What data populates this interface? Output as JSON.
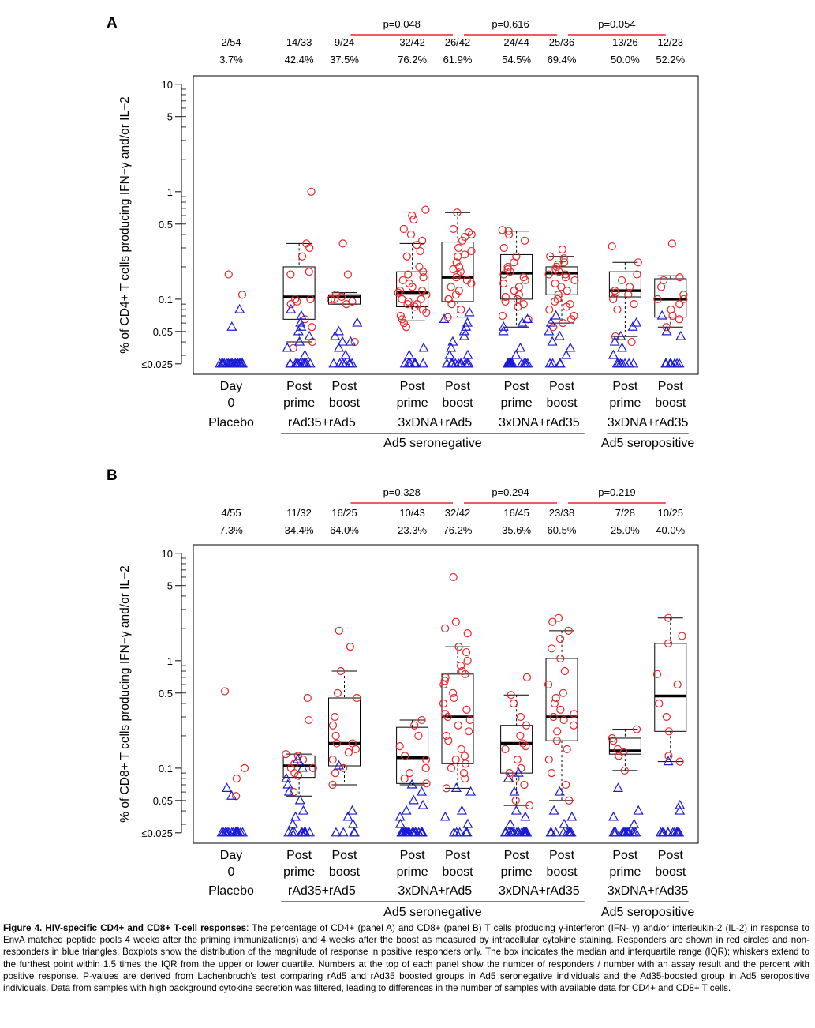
{
  "caption": {
    "bold": "Figure 4. HIV-specific CD4+ and CD8+ T-cell responses",
    "text": ": The percentage of CD4+ (panel A) and CD8+ (panel B) T cells producing γ-interferon (IFN- γ) and/or interleukin-2 (IL-2) in response to EnvA matched peptide pools 4 weeks after the priming immunization(s) and 4 weeks after the boost as measured by intracellular cytokine staining. Responders are shown in red circles and non-responders in blue triangles. Boxplots show the distribution of the magnitude of response in positive responders only. The box indicates the median and interquartile range (IQR); whiskers extend to the furthest point within 1.5 times the IQR from the upper or lower quartile. Numbers at the top of each panel show the number of responders / number with an assay result and the percent with positive response. P-values are derived from Lachenbruch's test comparing rAd5 and rAd35 boosted groups in Ad5 seronegative individuals and the Ad35-boosted group in Ad5 seropositive individuals.  Data from samples with high background cytokine secretion was filtered, leading to differences in the number of samples with available data for CD4+ and CD8+ T cells."
  },
  "colors": {
    "responder": "#e8262a",
    "nonresponder": "#1a1ad6",
    "pvalue_line": "#e8262a"
  },
  "chart_data": [
    {
      "type": "box-strip",
      "panel": "A",
      "ylabel": "% of CD4+ T cells producing IFN−γ and/or IL−2",
      "yscale": "log",
      "ylim": [
        0.02,
        12
      ],
      "yticks": [
        {
          "v": 10,
          "label": "10"
        },
        {
          "v": 5,
          "label": "5"
        },
        {
          "v": 1,
          "label": "1"
        },
        {
          "v": 0.5,
          "label": "0.5"
        },
        {
          "v": 0.1,
          "label": "0.1"
        },
        {
          "v": 0.05,
          "label": "0.05"
        },
        {
          "v": 0.025,
          "label": "≤0.025"
        }
      ],
      "groups": [
        {
          "x": 1,
          "time": "Day 0",
          "resp": "2/54",
          "pct": "3.7%"
        },
        {
          "x": 2.5,
          "time": "Post prime",
          "resp": "14/33",
          "pct": "42.4%"
        },
        {
          "x": 3.5,
          "time": "Post boost",
          "resp": "9/24",
          "pct": "37.5%"
        },
        {
          "x": 5,
          "time": "Post prime",
          "resp": "32/42",
          "pct": "76.2%"
        },
        {
          "x": 6,
          "time": "Post boost",
          "resp": "26/42",
          "pct": "61.9%"
        },
        {
          "x": 7.3,
          "time": "Post prime",
          "resp": "24/44",
          "pct": "54.5%"
        },
        {
          "x": 8.3,
          "time": "Post boost",
          "resp": "25/36",
          "pct": "69.4%"
        },
        {
          "x": 9.7,
          "time": "Post prime",
          "resp": "13/26",
          "pct": "50.0%"
        },
        {
          "x": 10.7,
          "time": "Post boost",
          "resp": "12/23",
          "pct": "52.2%"
        }
      ],
      "regimens": [
        {
          "label": "Placebo",
          "x": 1
        },
        {
          "label": "rAd35+rAd5",
          "x": 3
        },
        {
          "label": "3xDNA+rAd5",
          "x": 5.5
        },
        {
          "label": "3xDNA+rAd35",
          "x": 7.8
        },
        {
          "label": "3xDNA+rAd35",
          "x": 10.2
        }
      ],
      "serostatus": [
        {
          "label": "Ad5 seronegative",
          "x1": 2.1,
          "x2": 8.8
        },
        {
          "label": "Ad5 seropositive",
          "x1": 9.3,
          "x2": 11.1
        }
      ],
      "pvalues": [
        {
          "label": "p=0.048",
          "x1": 3.5,
          "x2": 6
        },
        {
          "label": "p=0.616",
          "x1": 6,
          "x2": 8.3
        },
        {
          "label": "p=0.054",
          "x1": 8.3,
          "x2": 10.7
        }
      ],
      "boxes": [
        {
          "g": 1,
          "wlo": 0.04,
          "q1": 0.065,
          "med": 0.105,
          "q3": 0.2,
          "whi": 0.33
        },
        {
          "g": 2,
          "wlo": 0.09,
          "q1": 0.09,
          "med": 0.105,
          "q3": 0.11,
          "whi": 0.115
        },
        {
          "g": 3,
          "wlo": 0.063,
          "q1": 0.085,
          "med": 0.115,
          "q3": 0.18,
          "whi": 0.33
        },
        {
          "g": 4,
          "wlo": 0.068,
          "q1": 0.095,
          "med": 0.16,
          "q3": 0.34,
          "whi": 0.64
        },
        {
          "g": 5,
          "wlo": 0.055,
          "q1": 0.1,
          "med": 0.175,
          "q3": 0.26,
          "whi": 0.43
        },
        {
          "g": 6,
          "wlo": 0.06,
          "q1": 0.11,
          "med": 0.175,
          "q3": 0.2,
          "whi": 0.25
        },
        {
          "g": 7,
          "wlo": 0.045,
          "q1": 0.105,
          "med": 0.12,
          "q3": 0.18,
          "whi": 0.22
        },
        {
          "g": 8,
          "wlo": 0.055,
          "q1": 0.068,
          "med": 0.1,
          "q3": 0.155,
          "whi": 0.165
        }
      ],
      "points": [
        {
          "g": 0,
          "r": [
            0.17,
            0.11
          ],
          "n": [
            0.055,
            0.08
          ],
          "n_floor": 24
        },
        {
          "g": 1,
          "r": [
            1.0,
            0.33,
            0.3,
            0.25,
            0.18,
            0.17,
            0.1,
            0.1,
            0.095,
            0.09,
            0.065,
            0.055,
            0.04,
            0.035
          ],
          "n": [
            0.08,
            0.07,
            0.06,
            0.055,
            0.05,
            0.045,
            0.04,
            0.035,
            0.03
          ],
          "n_floor": 12
        },
        {
          "g": 2,
          "r": [
            0.33,
            0.17,
            0.11,
            0.105,
            0.1,
            0.1,
            0.095,
            0.09,
            0.04
          ],
          "n": [
            0.06,
            0.05,
            0.045,
            0.04,
            0.04,
            0.035,
            0.03
          ],
          "n_floor": 8
        },
        {
          "g": 3,
          "r": [
            0.68,
            0.6,
            0.55,
            0.45,
            0.4,
            0.35,
            0.32,
            0.28,
            0.25,
            0.2,
            0.18,
            0.17,
            0.16,
            0.15,
            0.14,
            0.13,
            0.12,
            0.12,
            0.115,
            0.11,
            0.1,
            0.1,
            0.095,
            0.09,
            0.09,
            0.085,
            0.08,
            0.075,
            0.07,
            0.065,
            0.06,
            0.055
          ],
          "n": [
            0.035,
            0.03
          ],
          "n_floor": 8
        },
        {
          "g": 4,
          "r": [
            0.64,
            0.45,
            0.42,
            0.4,
            0.38,
            0.35,
            0.3,
            0.28,
            0.26,
            0.25,
            0.22,
            0.2,
            0.19,
            0.18,
            0.17,
            0.16,
            0.15,
            0.14,
            0.13,
            0.12,
            0.11,
            0.1,
            0.1,
            0.09,
            0.08,
            0.068
          ],
          "n": [
            0.075,
            0.065,
            0.06,
            0.055,
            0.05,
            0.045,
            0.04,
            0.035,
            0.03,
            0.03
          ],
          "n_floor": 10
        },
        {
          "g": 5,
          "r": [
            0.44,
            0.43,
            0.4,
            0.35,
            0.3,
            0.25,
            0.22,
            0.2,
            0.19,
            0.18,
            0.17,
            0.16,
            0.15,
            0.14,
            0.13,
            0.12,
            0.11,
            0.105,
            0.1,
            0.095,
            0.09,
            0.085,
            0.07,
            0.065
          ],
          "n": [
            0.065,
            0.06,
            0.055,
            0.05,
            0.035,
            0.03
          ],
          "n_floor": 14
        },
        {
          "g": 6,
          "r": [
            0.29,
            0.25,
            0.24,
            0.22,
            0.21,
            0.2,
            0.19,
            0.18,
            0.17,
            0.17,
            0.16,
            0.15,
            0.14,
            0.13,
            0.12,
            0.11,
            0.1,
            0.095,
            0.09,
            0.085,
            0.08,
            0.07,
            0.065,
            0.06,
            0.055
          ],
          "n": [
            0.07,
            0.06,
            0.05,
            0.045,
            0.04,
            0.035,
            0.03
          ],
          "n_floor": 4
        },
        {
          "g": 7,
          "r": [
            0.31,
            0.22,
            0.17,
            0.15,
            0.13,
            0.12,
            0.115,
            0.11,
            0.1,
            0.09,
            0.08,
            0.045,
            0.04
          ],
          "n": [
            0.06,
            0.055,
            0.045,
            0.04,
            0.035,
            0.03
          ],
          "n_floor": 7
        },
        {
          "g": 8,
          "r": [
            0.33,
            0.16,
            0.15,
            0.13,
            0.11,
            0.1,
            0.1,
            0.09,
            0.08,
            0.07,
            0.065,
            0.055
          ],
          "n": [
            0.07,
            0.05,
            0.045
          ],
          "n_floor": 8
        }
      ]
    },
    {
      "type": "box-strip",
      "panel": "B",
      "ylabel": "% of CD8+ T cells producing IFN−γ and/or IL−2",
      "yscale": "log",
      "ylim": [
        0.02,
        12
      ],
      "yticks": [
        {
          "v": 10,
          "label": "10"
        },
        {
          "v": 5,
          "label": "5"
        },
        {
          "v": 1,
          "label": "1"
        },
        {
          "v": 0.5,
          "label": "0.5"
        },
        {
          "v": 0.1,
          "label": "0.1"
        },
        {
          "v": 0.05,
          "label": "0.05"
        },
        {
          "v": 0.025,
          "label": "≤0.025"
        }
      ],
      "groups": [
        {
          "x": 1,
          "time": "Day 0",
          "resp": "4/55",
          "pct": "7.3%"
        },
        {
          "x": 2.5,
          "time": "Post prime",
          "resp": "11/32",
          "pct": "34.4%"
        },
        {
          "x": 3.5,
          "time": "Post boost",
          "resp": "16/25",
          "pct": "64.0%"
        },
        {
          "x": 5,
          "time": "Post prime",
          "resp": "10/43",
          "pct": "23.3%"
        },
        {
          "x": 6,
          "time": "Post boost",
          "resp": "32/42",
          "pct": "76.2%"
        },
        {
          "x": 7.3,
          "time": "Post prime",
          "resp": "16/45",
          "pct": "35.6%"
        },
        {
          "x": 8.3,
          "time": "Post boost",
          "resp": "23/38",
          "pct": "60.5%"
        },
        {
          "x": 9.7,
          "time": "Post prime",
          "resp": "7/28",
          "pct": "25.0%"
        },
        {
          "x": 10.7,
          "time": "Post boost",
          "resp": "10/25",
          "pct": "40.0%"
        }
      ],
      "regimens": [
        {
          "label": "Placebo",
          "x": 1
        },
        {
          "label": "rAd35+rAd5",
          "x": 3
        },
        {
          "label": "3xDNA+rAd5",
          "x": 5.5
        },
        {
          "label": "3xDNA+rAd35",
          "x": 7.8
        },
        {
          "label": "3xDNA+rAd35",
          "x": 10.2
        }
      ],
      "serostatus": [
        {
          "label": "Ad5 seronegative",
          "x1": 2.1,
          "x2": 8.8
        },
        {
          "label": "Ad5 seropositive",
          "x1": 9.3,
          "x2": 11.1
        }
      ],
      "pvalues": [
        {
          "label": "p=0.328",
          "x1": 3.5,
          "x2": 6
        },
        {
          "label": "p=0.294",
          "x1": 6,
          "x2": 8.3
        },
        {
          "label": "p=0.219",
          "x1": 8.3,
          "x2": 10.7
        }
      ],
      "boxes": [
        {
          "g": 1,
          "wlo": 0.055,
          "q1": 0.082,
          "med": 0.105,
          "q3": 0.13,
          "whi": 0.135
        },
        {
          "g": 2,
          "wlo": 0.07,
          "q1": 0.105,
          "med": 0.17,
          "q3": 0.45,
          "whi": 0.8
        },
        {
          "g": 3,
          "wlo": 0.07,
          "q1": 0.072,
          "med": 0.125,
          "q3": 0.24,
          "whi": 0.28
        },
        {
          "g": 4,
          "wlo": 0.065,
          "q1": 0.11,
          "med": 0.3,
          "q3": 0.75,
          "whi": 1.35
        },
        {
          "g": 5,
          "wlo": 0.045,
          "q1": 0.09,
          "med": 0.17,
          "q3": 0.25,
          "whi": 0.48
        },
        {
          "g": 6,
          "wlo": 0.05,
          "q1": 0.18,
          "med": 0.3,
          "q3": 1.05,
          "whi": 1.9
        },
        {
          "g": 7,
          "wlo": 0.095,
          "q1": 0.135,
          "med": 0.145,
          "q3": 0.19,
          "whi": 0.23
        },
        {
          "g": 8,
          "wlo": 0.115,
          "q1": 0.22,
          "med": 0.47,
          "q3": 1.45,
          "whi": 2.5
        }
      ],
      "points": [
        {
          "g": 0,
          "r": [
            0.52,
            0.1,
            0.08,
            0.055
          ],
          "n": [
            0.065,
            0.055
          ],
          "n_floor": 18
        },
        {
          "g": 1,
          "r": [
            0.45,
            0.28,
            0.135,
            0.13,
            0.12,
            0.11,
            0.1,
            0.1,
            0.09,
            0.085,
            0.06
          ],
          "n": [
            0.12,
            0.1,
            0.08,
            0.07,
            0.06,
            0.05,
            0.04,
            0.035,
            0.03
          ],
          "n_floor": 10
        },
        {
          "g": 2,
          "r": [
            1.9,
            1.35,
            0.8,
            0.5,
            0.45,
            0.3,
            0.25,
            0.2,
            0.17,
            0.17,
            0.15,
            0.14,
            0.12,
            0.1,
            0.09,
            0.07
          ],
          "n": [
            0.105,
            0.04,
            0.035,
            0.03
          ],
          "n_floor": 4
        },
        {
          "g": 3,
          "r": [
            0.28,
            0.25,
            0.2,
            0.16,
            0.13,
            0.12,
            0.1,
            0.09,
            0.08,
            0.072
          ],
          "n": [
            0.07,
            0.06,
            0.05,
            0.045,
            0.04,
            0.035,
            0.03
          ],
          "n_floor": 24
        },
        {
          "g": 4,
          "r": [
            6.0,
            2.3,
            2.0,
            1.8,
            1.35,
            1.2,
            1.0,
            0.9,
            0.8,
            0.75,
            0.7,
            0.65,
            0.6,
            0.5,
            0.45,
            0.4,
            0.35,
            0.32,
            0.3,
            0.28,
            0.25,
            0.22,
            0.2,
            0.18,
            0.15,
            0.13,
            0.12,
            0.11,
            0.1,
            0.09,
            0.08,
            0.065
          ],
          "n": [
            0.065,
            0.06,
            0.04,
            0.035,
            0.03
          ],
          "n_floor": 5
        },
        {
          "g": 5,
          "r": [
            0.7,
            0.48,
            0.4,
            0.3,
            0.25,
            0.2,
            0.17,
            0.16,
            0.15,
            0.12,
            0.1,
            0.09,
            0.08,
            0.07,
            0.05,
            0.045
          ],
          "n": [
            0.09,
            0.08,
            0.06,
            0.04,
            0.035,
            0.03
          ],
          "n_floor": 23
        },
        {
          "g": 6,
          "r": [
            2.5,
            2.3,
            1.9,
            1.6,
            1.3,
            1.05,
            0.8,
            0.6,
            0.5,
            0.45,
            0.4,
            0.35,
            0.32,
            0.3,
            0.28,
            0.25,
            0.22,
            0.18,
            0.15,
            0.12,
            0.09,
            0.07,
            0.05
          ],
          "n": [
            0.06,
            0.04,
            0.035,
            0.03
          ],
          "n_floor": 11
        },
        {
          "g": 7,
          "r": [
            0.23,
            0.19,
            0.18,
            0.15,
            0.14,
            0.13,
            0.095
          ],
          "n": [
            0.065,
            0.04,
            0.035,
            0.03
          ],
          "n_floor": 17
        },
        {
          "g": 8,
          "r": [
            2.5,
            1.7,
            1.45,
            0.75,
            0.6,
            0.4,
            0.3,
            0.22,
            0.13,
            0.115
          ],
          "n": [
            0.115,
            0.045,
            0.04
          ],
          "n_floor": 12
        }
      ]
    }
  ]
}
